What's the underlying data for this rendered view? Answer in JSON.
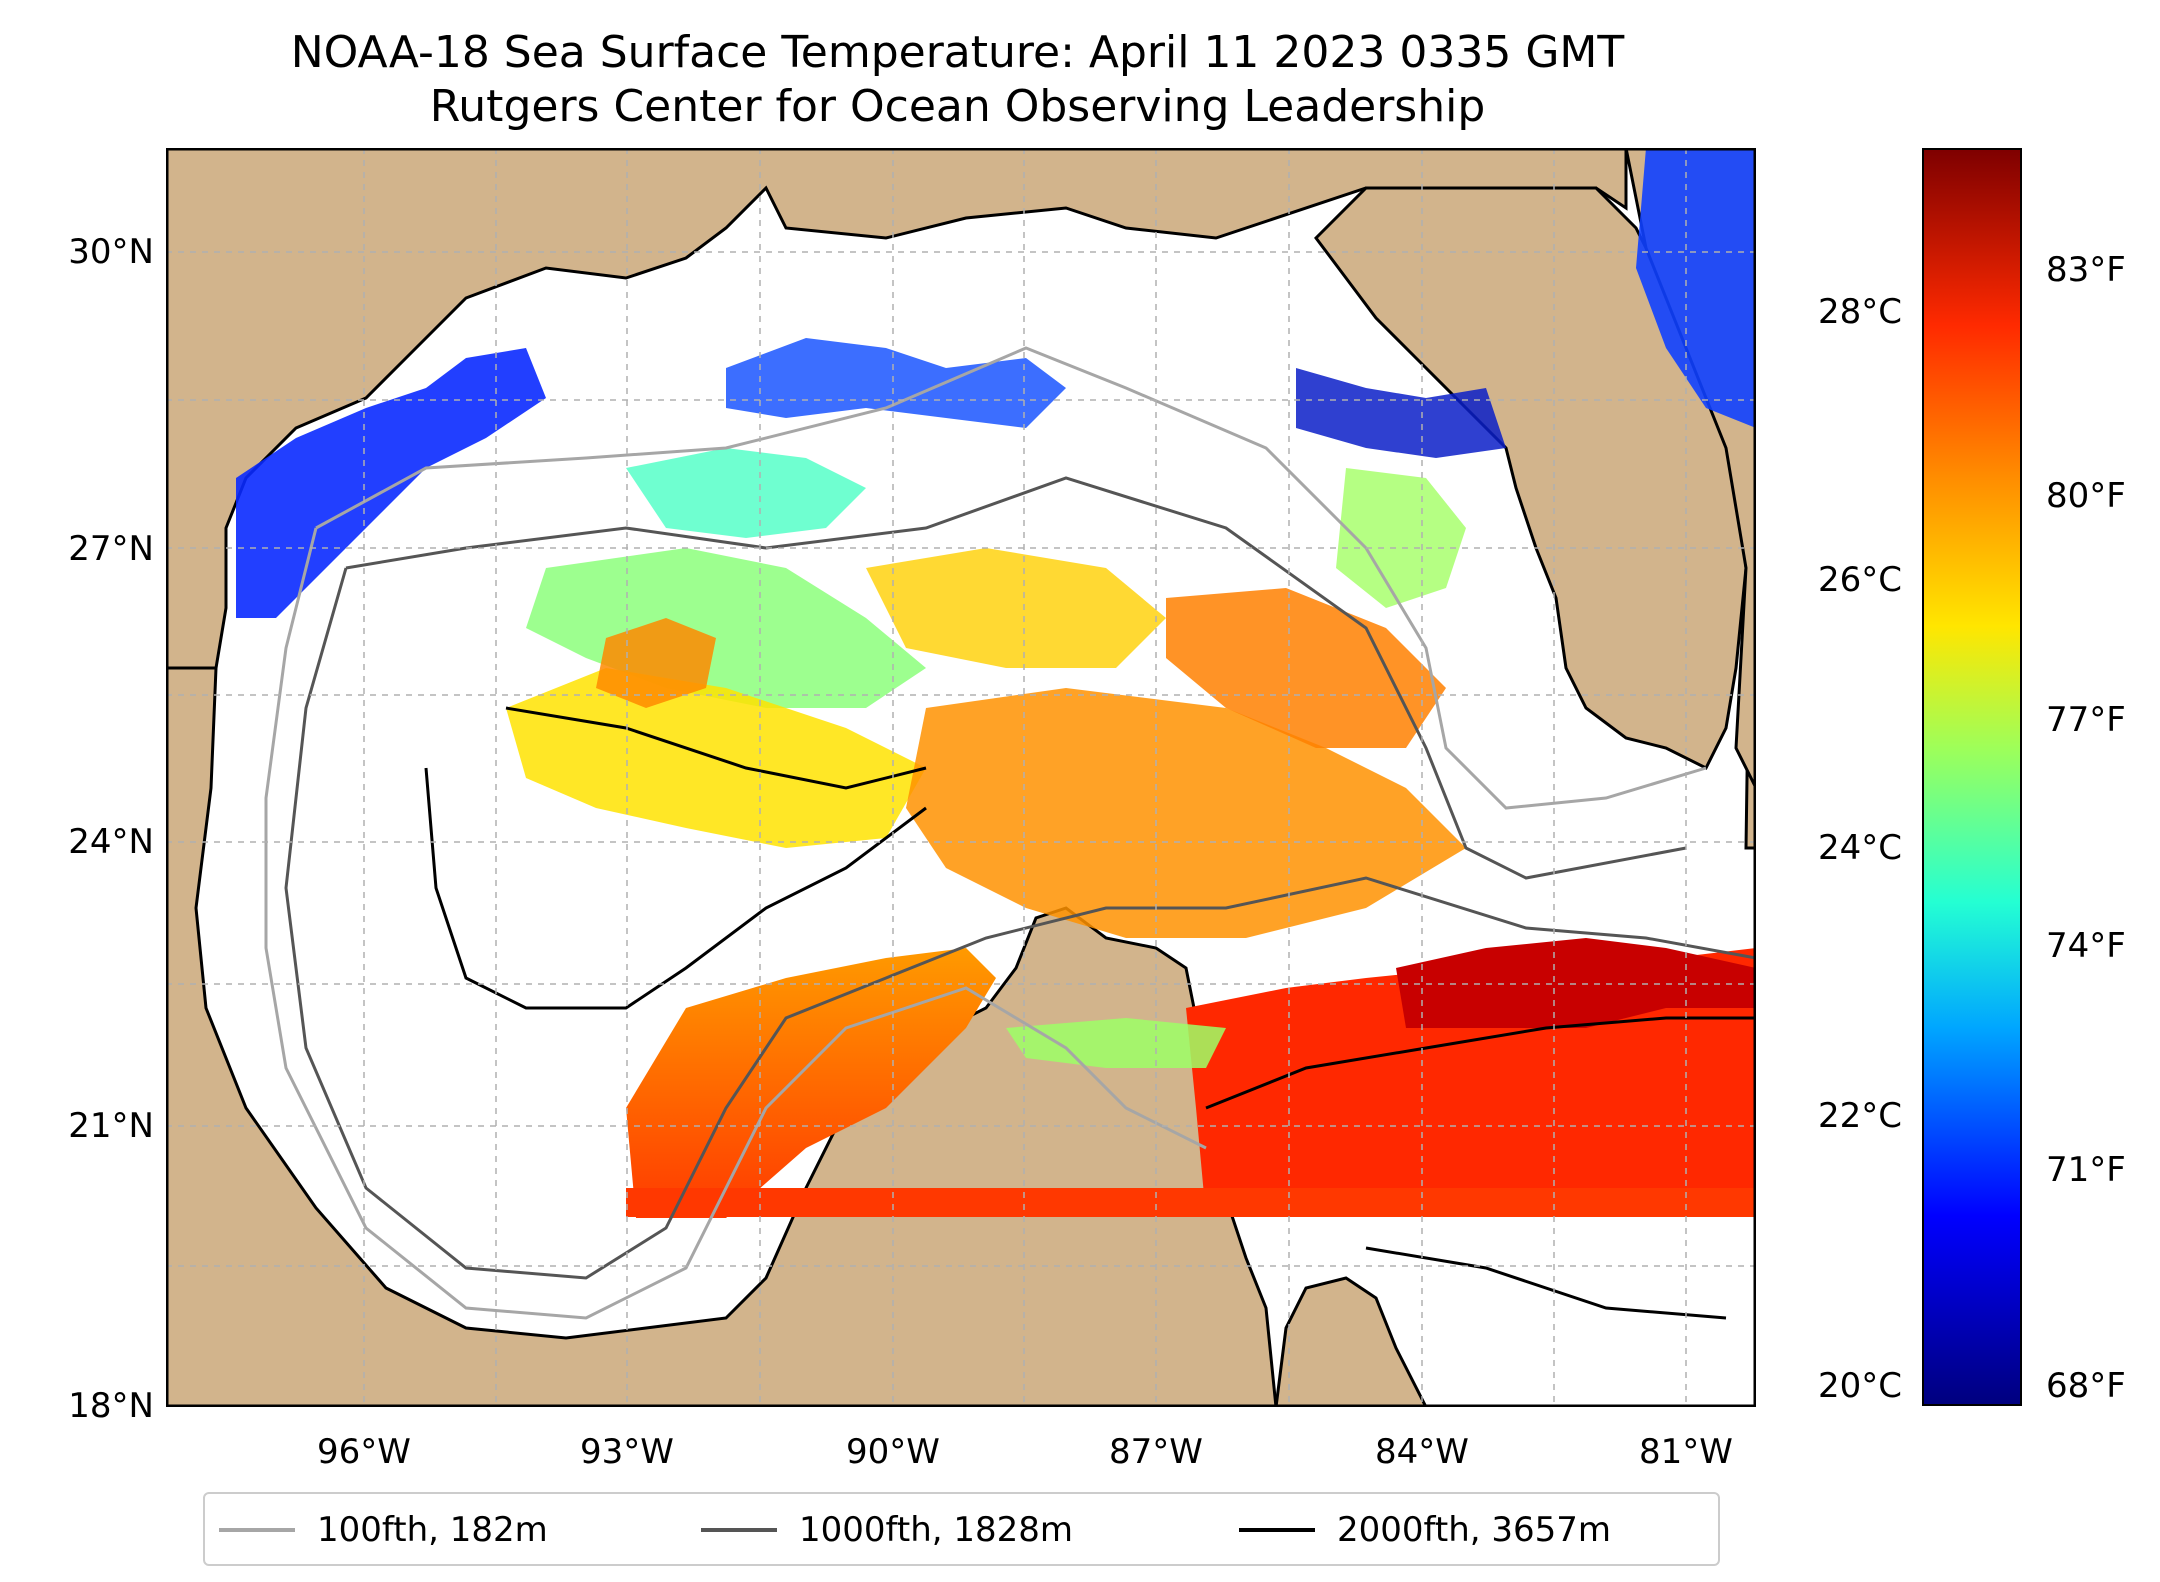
{
  "title_line1": "NOAA-18 Sea Surface Temperature: April 11 2023 0335 GMT",
  "title_line2": "Rutgers Center for Ocean Observing Leadership",
  "map": {
    "lat_labels": [
      "30°N",
      "27°N",
      "24°N",
      "21°N",
      "18°N"
    ],
    "lon_labels": [
      "96°W",
      "93°W",
      "90°W",
      "87°W",
      "84°W",
      "81°W"
    ],
    "land_color": "#d2b48c",
    "cloud_color": "#ffffff"
  },
  "colorbar": {
    "celsius_labels": [
      "28°C",
      "26°C",
      "24°C",
      "22°C",
      "20°C"
    ],
    "fahrenheit_labels": [
      "83°F",
      "80°F",
      "77°F",
      "74°F",
      "71°F",
      "68°F"
    ],
    "colormap": "jet"
  },
  "legend": {
    "items": [
      {
        "label": "100fth, 182m",
        "color": "#a6a6a6"
      },
      {
        "label": "1000fth, 1828m",
        "color": "#555555"
      },
      {
        "label": "2000fth, 3657m",
        "color": "#000000"
      }
    ]
  }
}
